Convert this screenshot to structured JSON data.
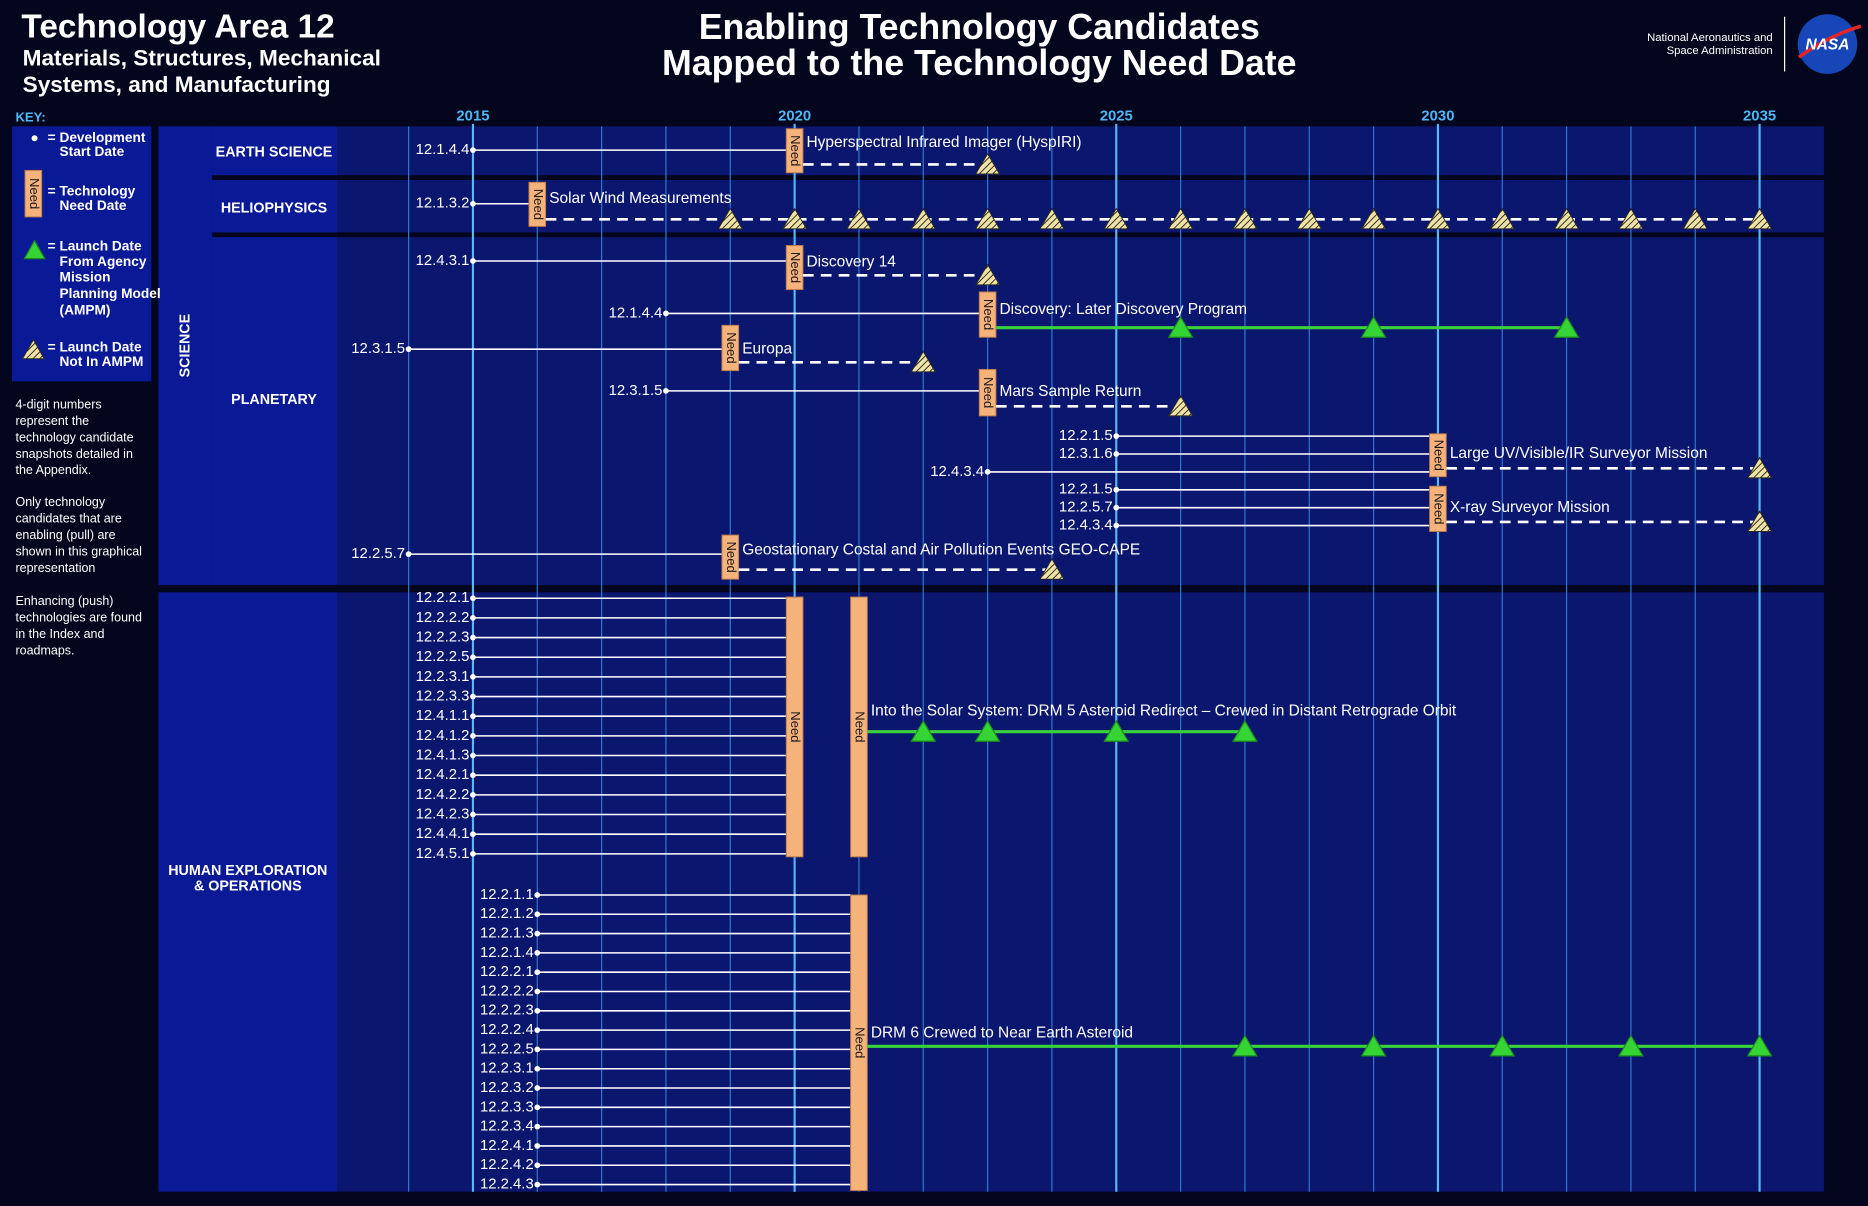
{
  "header": {
    "title": "Technology Area 12",
    "subtitle": [
      "Materials, Structures, Mechanical",
      "Systems, and Manufacturing"
    ],
    "main_title": [
      "Enabling Technology Candidates",
      "Mapped to the Technology Need Date"
    ],
    "agency": [
      "National Aeronautics and",
      "Space Administration"
    ],
    "logo": "NASA"
  },
  "key": {
    "label": "KEY:",
    "items": [
      [
        "= Development",
        "Start Date"
      ],
      [
        "= Technology",
        "Need Date"
      ],
      [
        "= Launch Date",
        "From Agency",
        "Mission",
        "Planning Model",
        "(AMPM)"
      ],
      [
        "= Launch Date",
        "Not In AMPM"
      ]
    ],
    "notes": [
      [
        "4-digit numbers",
        "represent the",
        "technology candidate",
        "snapshots detailed in",
        "the Appendix."
      ],
      [
        "Only technology",
        "candidates that are",
        "enabling (pull) are",
        "shown in this graphical",
        "representation"
      ],
      [
        "Enhancing (push)",
        "technologies are found",
        "in the Index and",
        "roadmaps."
      ]
    ]
  },
  "need_text": "Need",
  "timeline": {
    "xlim": [
      2013.6,
      2036
    ],
    "xticks": [
      2015,
      2020,
      2025,
      2030,
      2035
    ],
    "grid": true,
    "groups": [
      {
        "label": [
          "SCIENCE"
        ],
        "sections": [
          {
            "label": [
              "EARTH SCIENCE"
            ],
            "missions": [
              {
                "name": "Hyperspectral Infrared Imager (HyspIRI)",
                "candidates": [
                  {
                    "id": "12.1.4.4",
                    "start": 2015
                  }
                ],
                "need": [
                  2020
                ],
                "launches_not_ampm": [
                  2023
                ]
              }
            ]
          },
          {
            "label": [
              "HELIOPHYSICS"
            ],
            "missions": [
              {
                "name": "Solar Wind Measurements",
                "candidates": [
                  {
                    "id": "12.1.3.2",
                    "start": 2015
                  }
                ],
                "need": [
                  2016
                ],
                "launches_not_ampm": [
                  2019,
                  2020,
                  2021,
                  2022,
                  2023,
                  2024,
                  2025,
                  2026,
                  2027,
                  2028,
                  2029,
                  2030,
                  2031,
                  2032,
                  2033,
                  2034,
                  2035
                ]
              }
            ]
          },
          {
            "label": [
              "PLANETARY"
            ],
            "missions": [
              {
                "name": "Discovery  14",
                "candidates": [
                  {
                    "id": "12.4.3.1",
                    "start": 2015
                  }
                ],
                "need": [
                  2020
                ],
                "launches_not_ampm": [
                  2023
                ]
              },
              {
                "name": "Discovery: Later Discovery Program",
                "candidates": [
                  {
                    "id": "12.1.4.4",
                    "start": 2018
                  }
                ],
                "need": [
                  2023
                ],
                "launches_ampm": [
                  2026,
                  2029,
                  2032
                ]
              },
              {
                "name": "Europa",
                "candidates": [
                  {
                    "id": "12.3.1.5",
                    "start": 2014
                  }
                ],
                "need": [
                  2019
                ],
                "launches_not_ampm": [
                  2022
                ]
              },
              {
                "name": "Mars Sample Return",
                "candidates": [
                  {
                    "id": "12.3.1.5",
                    "start": 2018
                  }
                ],
                "need": [
                  2023
                ],
                "launches_not_ampm": [
                  2026
                ]
              },
              {
                "name": "Large UV/Visible/IR Surveyor Mission",
                "candidates": [
                  {
                    "id": "12.2.1.5",
                    "start": 2025
                  },
                  {
                    "id": "12.3.1.6",
                    "start": 2025
                  },
                  {
                    "id": "12.4.3.4",
                    "start": 2023
                  }
                ],
                "need": [
                  2030
                ],
                "launches_not_ampm": [
                  2035
                ]
              },
              {
                "name": "X-ray Surveyor Mission",
                "candidates": [
                  {
                    "id": "12.2.1.5",
                    "start": 2025
                  },
                  {
                    "id": "12.2.5.7",
                    "start": 2025
                  },
                  {
                    "id": "12.4.3.4",
                    "start": 2025
                  }
                ],
                "need": [
                  2030
                ],
                "launches_not_ampm": [
                  2035
                ]
              },
              {
                "name": "Geostationary Costal and Air Pollution Events GEO-CAPE",
                "candidates": [
                  {
                    "id": "12.2.5.7",
                    "start": 2014
                  }
                ],
                "need": [
                  2019
                ],
                "launches_not_ampm": [
                  2024
                ]
              }
            ]
          }
        ]
      },
      {
        "label": [
          "HUMAN EXPLORATION",
          "& OPERATIONS"
        ],
        "missions": [
          {
            "name": "Into the Solar System: DRM 5 Asteroid Redirect – Crewed in Distant Retrograde Orbit",
            "candidates": [
              {
                "id": "12.2.2.1",
                "start": 2015
              },
              {
                "id": "12.2.2.2",
                "start": 2015
              },
              {
                "id": "12.2.2.3",
                "start": 2015
              },
              {
                "id": "12.2.2.5",
                "start": 2015
              },
              {
                "id": "12.2.3.1",
                "start": 2015
              },
              {
                "id": "12.2.3.3",
                "start": 2015
              },
              {
                "id": "12.4.1.1",
                "start": 2015
              },
              {
                "id": "12.4.1.2",
                "start": 2015
              },
              {
                "id": "12.4.1.3",
                "start": 2015
              },
              {
                "id": "12.4.2.1",
                "start": 2015
              },
              {
                "id": "12.4.2.2",
                "start": 2015
              },
              {
                "id": "12.4.2.3",
                "start": 2015
              },
              {
                "id": "12.4.4.1",
                "start": 2015
              },
              {
                "id": "12.4.5.1",
                "start": 2015
              }
            ],
            "need": [
              2020,
              2021
            ],
            "launches_ampm": [
              2022,
              2023,
              2025,
              2027
            ]
          },
          {
            "name": "DRM 6 Crewed to Near Earth Asteroid",
            "candidates": [
              {
                "id": "12.2.1.1",
                "start": 2016
              },
              {
                "id": "12.2.1.2",
                "start": 2016
              },
              {
                "id": "12.2.1.3",
                "start": 2016
              },
              {
                "id": "12.2.1.4",
                "start": 2016
              },
              {
                "id": "12.2.2.1",
                "start": 2016
              },
              {
                "id": "12.2.2.2",
                "start": 2016
              },
              {
                "id": "12.2.2.3",
                "start": 2016
              },
              {
                "id": "12.2.2.4",
                "start": 2016
              },
              {
                "id": "12.2.2.5",
                "start": 2016
              },
              {
                "id": "12.2.3.1",
                "start": 2016
              },
              {
                "id": "12.2.3.2",
                "start": 2016
              },
              {
                "id": "12.2.3.3",
                "start": 2016
              },
              {
                "id": "12.2.3.4",
                "start": 2016
              },
              {
                "id": "12.2.4.1",
                "start": 2016
              },
              {
                "id": "12.2.4.2",
                "start": 2016
              },
              {
                "id": "12.2.4.3",
                "start": 2016
              }
            ],
            "need": [
              2021
            ],
            "launches_ampm": [
              2027,
              2029,
              2031,
              2033,
              2035
            ]
          }
        ]
      }
    ]
  }
}
